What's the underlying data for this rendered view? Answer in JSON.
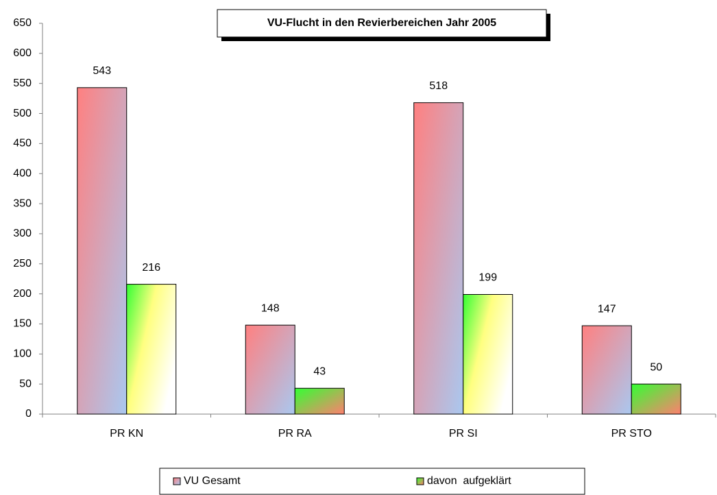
{
  "chart_data": {
    "type": "bar",
    "title": "VU-Flucht in den Revierbereichen Jahr 2005",
    "categories": [
      "PR KN",
      "PR RA",
      "PR SI",
      "PR STO"
    ],
    "series": [
      {
        "name": "VU Gesamt",
        "color": "#ff8080",
        "values": [
          543,
          148,
          518,
          147
        ]
      },
      {
        "name": "davon  aufgeklärt",
        "color": "#33ff33",
        "values": [
          216,
          43,
          199,
          50
        ]
      }
    ],
    "ylim": [
      0,
      650
    ],
    "yticks": [
      0,
      50,
      100,
      150,
      200,
      250,
      300,
      350,
      400,
      450,
      500,
      550,
      600,
      650
    ],
    "grid": false,
    "legend": "bottom"
  }
}
